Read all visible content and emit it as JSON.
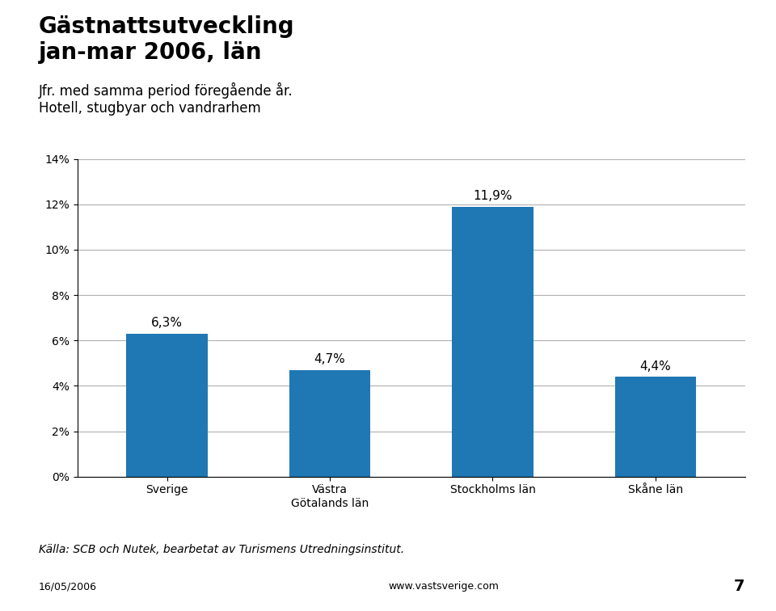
{
  "chart_data": {
    "type": "bar",
    "title": "Gästnattsutveckling\njan-mar 2006, län",
    "subtitle": "Jfr. med samma period föregående år.\nHotell, stugbyar och vandrarhem",
    "categories": [
      "Sverige",
      "Västra\nGötalands län",
      "Stockholms län",
      "Skåne län"
    ],
    "values": [
      6.3,
      4.7,
      11.9,
      4.4
    ],
    "value_labels": [
      "6,3%",
      "4,7%",
      "11,9%",
      "4,4%"
    ],
    "data_labels": true,
    "ylim": [
      0,
      14
    ],
    "yticks": [
      {
        "value": 0,
        "label": "0%"
      },
      {
        "value": 2,
        "label": "2%"
      },
      {
        "value": 4,
        "label": "4%"
      },
      {
        "value": 6,
        "label": "6%"
      },
      {
        "value": 8,
        "label": "8%"
      },
      {
        "value": 10,
        "label": "10%"
      },
      {
        "value": 12,
        "label": "12%"
      },
      {
        "value": 14,
        "label": "14%"
      }
    ],
    "grid": true,
    "annotations": [
      "Källa: SCB och Nutek, bearbetat av Turismens Utredningsinstitut.",
      "16/05/2006",
      "www.vastsverige.com",
      "7"
    ]
  }
}
